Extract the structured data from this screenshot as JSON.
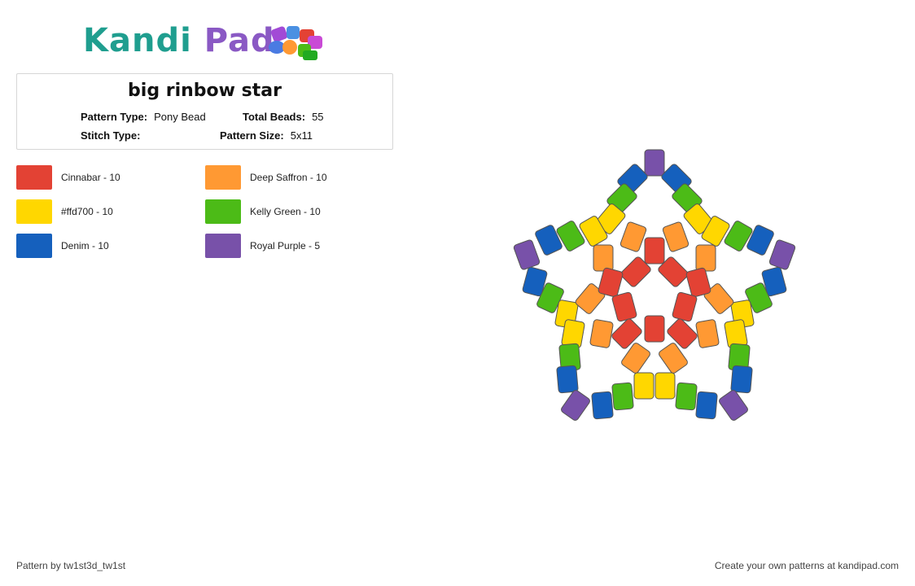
{
  "logo": {
    "part1": "Kandi",
    "part2": "Pad",
    "icon": "bead-cluster-icon"
  },
  "pattern": {
    "title": "big rinbow star",
    "pattern_type_label": "Pattern Type:",
    "pattern_type_value": "Pony Bead",
    "total_beads_label": "Total Beads:",
    "total_beads_value": "55",
    "stitch_type_label": "Stitch Type:",
    "stitch_type_value": "",
    "pattern_size_label": "Pattern Size:",
    "pattern_size_value": "5x11"
  },
  "legend": [
    {
      "label": "Cinnabar - 10",
      "color": "#e34234"
    },
    {
      "label": "Deep Saffron - 10",
      "color": "#ff9933"
    },
    {
      "label": "#ffd700 - 10",
      "color": "#ffd700"
    },
    {
      "label": "Kelly Green - 10",
      "color": "#4cbb17"
    },
    {
      "label": "Denim - 10",
      "color": "#1560bd"
    },
    {
      "label": "Royal Purple - 5",
      "color": "#7851a9"
    }
  ],
  "footer": {
    "credit": "Pattern by tw1st3d_tw1st",
    "cta": "Create your own patterns at kandipad.com"
  }
}
